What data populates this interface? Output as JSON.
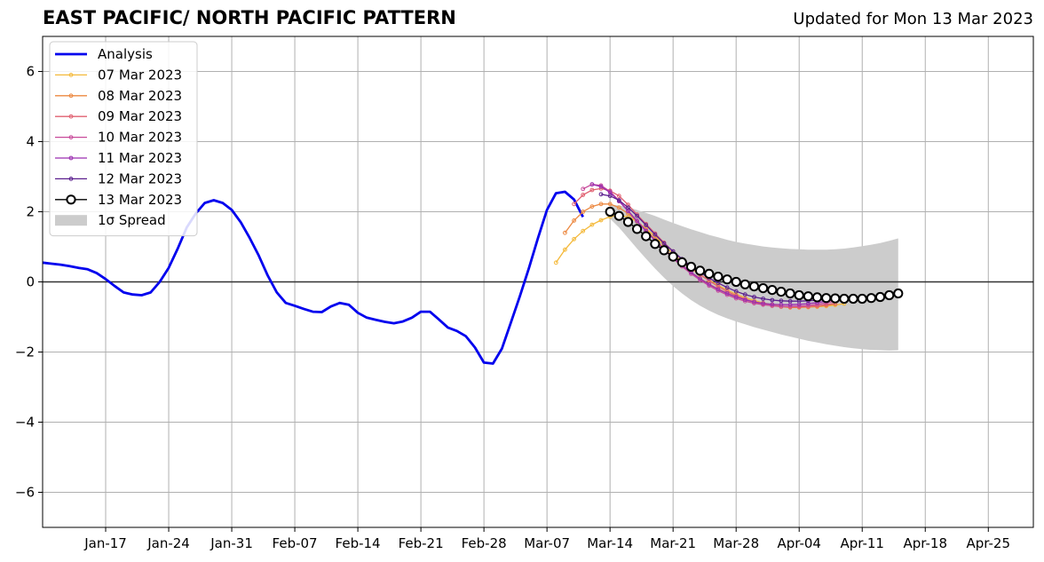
{
  "header": {
    "title": "EAST PACIFIC/ NORTH PACIFIC PATTERN",
    "updated": "Updated for Mon 13 Mar 2023"
  },
  "chart_data": {
    "type": "line",
    "title": "EAST PACIFIC/ NORTH PACIFIC PATTERN",
    "subtitle": "Updated for Mon 13 Mar 2023",
    "xlabel": "",
    "ylabel": "",
    "x_range": [
      "2023-01-10",
      "2023-04-30"
    ],
    "ylim": [
      -7,
      7
    ],
    "x_ticks": [
      {
        "date": "2023-01-17",
        "label": "Jan-17"
      },
      {
        "date": "2023-01-24",
        "label": "Jan-24"
      },
      {
        "date": "2023-01-31",
        "label": "Jan-31"
      },
      {
        "date": "2023-02-07",
        "label": "Feb-07"
      },
      {
        "date": "2023-02-14",
        "label": "Feb-14"
      },
      {
        "date": "2023-02-21",
        "label": "Feb-21"
      },
      {
        "date": "2023-02-28",
        "label": "Feb-28"
      },
      {
        "date": "2023-03-07",
        "label": "Mar-07"
      },
      {
        "date": "2023-03-14",
        "label": "Mar-14"
      },
      {
        "date": "2023-03-21",
        "label": "Mar-21"
      },
      {
        "date": "2023-03-28",
        "label": "Mar-28"
      },
      {
        "date": "2023-04-04",
        "label": "Apr-04"
      },
      {
        "date": "2023-04-11",
        "label": "Apr-11"
      },
      {
        "date": "2023-04-18",
        "label": "Apr-18"
      },
      {
        "date": "2023-04-25",
        "label": "Apr-25"
      }
    ],
    "y_ticks": [
      {
        "value": 6,
        "label": "6"
      },
      {
        "value": 4,
        "label": "4"
      },
      {
        "value": 2,
        "label": "2"
      },
      {
        "value": 0,
        "label": "0"
      },
      {
        "value": -2,
        "label": "−2"
      },
      {
        "value": -4,
        "label": "−4"
      },
      {
        "value": -6,
        "label": "−6"
      }
    ],
    "grid": true,
    "legend_position": "top-left",
    "analysis": {
      "name": "Analysis",
      "color": "#0000ee",
      "start_date": "2023-01-10",
      "values": [
        0.55,
        0.52,
        0.49,
        0.45,
        0.4,
        0.36,
        0.25,
        0.08,
        -0.12,
        -0.3,
        -0.36,
        -0.38,
        -0.3,
        0.0,
        0.4,
        0.95,
        1.55,
        1.95,
        2.25,
        2.33,
        2.25,
        2.05,
        1.7,
        1.25,
        0.75,
        0.18,
        -0.3,
        -0.6,
        -0.68,
        -0.77,
        -0.85,
        -0.86,
        -0.7,
        -0.6,
        -0.65,
        -0.88,
        -1.02,
        -1.08,
        -1.14,
        -1.18,
        -1.13,
        -1.02,
        -0.85,
        -0.85,
        -1.07,
        -1.3,
        -1.4,
        -1.55,
        -1.87,
        -2.3,
        -2.33,
        -1.9,
        -1.15,
        -0.4,
        0.4,
        1.25,
        2.05,
        2.53,
        2.57,
        2.35,
        1.85
      ]
    },
    "forecasts": [
      {
        "name": "07 Mar 2023",
        "color": "#f4b93a",
        "start_date": "2023-03-08",
        "values": [
          0.55,
          0.92,
          1.22,
          1.45,
          1.63,
          1.76,
          1.86,
          1.9,
          1.85,
          1.72,
          1.52,
          1.3,
          1.05,
          0.8,
          0.57,
          0.38,
          0.2,
          0.05,
          -0.1,
          -0.23,
          -0.35,
          -0.45,
          -0.53,
          -0.6,
          -0.65,
          -0.69,
          -0.71,
          -0.72,
          -0.72,
          -0.71,
          -0.69,
          -0.66,
          -0.62
        ]
      },
      {
        "name": "08 Mar 2023",
        "color": "#ec8840",
        "start_date": "2023-03-09",
        "values": [
          1.4,
          1.75,
          2.0,
          2.15,
          2.22,
          2.22,
          2.12,
          1.95,
          1.73,
          1.48,
          1.22,
          0.96,
          0.71,
          0.48,
          0.27,
          0.1,
          -0.06,
          -0.2,
          -0.32,
          -0.42,
          -0.51,
          -0.58,
          -0.64,
          -0.68,
          -0.71,
          -0.73,
          -0.73,
          -0.72,
          -0.7,
          -0.67,
          -0.63
        ]
      },
      {
        "name": "09 Mar 2023",
        "color": "#e06070",
        "start_date": "2023-03-10",
        "values": [
          2.22,
          2.48,
          2.62,
          2.66,
          2.6,
          2.45,
          2.2,
          1.92,
          1.65,
          1.38,
          1.12,
          0.87,
          0.63,
          0.41,
          0.21,
          0.03,
          -0.13,
          -0.27,
          -0.39,
          -0.49,
          -0.57,
          -0.63,
          -0.67,
          -0.7,
          -0.71,
          -0.71,
          -0.7,
          -0.68,
          -0.65,
          -0.61
        ]
      },
      {
        "name": "10 Mar 2023",
        "color": "#c84a9a",
        "start_date": "2023-03-11",
        "values": [
          2.65,
          2.78,
          2.75,
          2.58,
          2.32,
          2.03,
          1.74,
          1.46,
          1.18,
          0.92,
          0.67,
          0.44,
          0.23,
          0.05,
          -0.11,
          -0.25,
          -0.37,
          -0.47,
          -0.55,
          -0.61,
          -0.65,
          -0.68,
          -0.7,
          -0.7,
          -0.69,
          -0.67,
          -0.64,
          -0.6,
          -0.55
        ]
      },
      {
        "name": "11 Mar 2023",
        "color": "#9a2fb0",
        "start_date": "2023-03-12",
        "values": [
          2.78,
          2.72,
          2.55,
          2.3,
          2.02,
          1.73,
          1.45,
          1.18,
          0.93,
          0.69,
          0.47,
          0.27,
          0.09,
          -0.07,
          -0.21,
          -0.33,
          -0.43,
          -0.51,
          -0.57,
          -0.61,
          -0.64,
          -0.65,
          -0.65,
          -0.64,
          -0.62,
          -0.59,
          -0.55,
          -0.5
        ]
      },
      {
        "name": "12 Mar 2023",
        "color": "#5b1f8e",
        "start_date": "2023-03-13",
        "values": [
          2.5,
          2.45,
          2.33,
          2.12,
          1.88,
          1.62,
          1.35,
          1.1,
          0.87,
          0.65,
          0.45,
          0.27,
          0.11,
          -0.03,
          -0.16,
          -0.27,
          -0.36,
          -0.43,
          -0.48,
          -0.52,
          -0.54,
          -0.55,
          -0.55,
          -0.54,
          -0.52,
          -0.5,
          -0.47,
          -0.44
        ]
      }
    ],
    "current_forecast": {
      "name": "13 Mar 2023",
      "color": "#000000",
      "start_date": "2023-03-14",
      "values": [
        2.0,
        1.88,
        1.71,
        1.51,
        1.3,
        1.08,
        0.9,
        0.72,
        0.56,
        0.43,
        0.32,
        0.23,
        0.15,
        0.07,
        0.0,
        -0.07,
        -0.13,
        -0.18,
        -0.23,
        -0.28,
        -0.33,
        -0.38,
        -0.41,
        -0.44,
        -0.46,
        -0.47,
        -0.48,
        -0.48,
        -0.48,
        -0.46,
        -0.43,
        -0.38,
        -0.33
      ]
    },
    "spread": {
      "name": "1σ Spread",
      "color": "#cccccc",
      "start_date": "2023-03-14",
      "upper": [
        2.2,
        2.18,
        2.13,
        2.05,
        1.97,
        1.88,
        1.78,
        1.68,
        1.59,
        1.5,
        1.42,
        1.34,
        1.27,
        1.2,
        1.14,
        1.09,
        1.05,
        1.01,
        0.98,
        0.96,
        0.94,
        0.93,
        0.92,
        0.92,
        0.92,
        0.93,
        0.95,
        0.98,
        1.02,
        1.06,
        1.11,
        1.17,
        1.24
      ],
      "lower": [
        1.8,
        1.55,
        1.25,
        0.95,
        0.66,
        0.38,
        0.12,
        -0.12,
        -0.33,
        -0.52,
        -0.68,
        -0.82,
        -0.94,
        -1.04,
        -1.13,
        -1.21,
        -1.29,
        -1.36,
        -1.43,
        -1.5,
        -1.56,
        -1.62,
        -1.68,
        -1.73,
        -1.78,
        -1.82,
        -1.86,
        -1.89,
        -1.92,
        -1.94,
        -1.95,
        -1.96,
        -1.95
      ]
    },
    "legend": [
      {
        "label": "Analysis",
        "kind": "analysis",
        "color": "#0000ee"
      },
      {
        "label": "07 Mar 2023",
        "kind": "forecast",
        "color": "#f4b93a"
      },
      {
        "label": "08 Mar 2023",
        "kind": "forecast",
        "color": "#ec8840"
      },
      {
        "label": "09 Mar 2023",
        "kind": "forecast",
        "color": "#e06070"
      },
      {
        "label": "10 Mar 2023",
        "kind": "forecast",
        "color": "#c84a9a"
      },
      {
        "label": "11 Mar 2023",
        "kind": "forecast",
        "color": "#9a2fb0"
      },
      {
        "label": "12 Mar 2023",
        "kind": "forecast",
        "color": "#5b1f8e"
      },
      {
        "label": "13 Mar 2023",
        "kind": "current",
        "color": "#000000"
      },
      {
        "label": "1σ Spread",
        "kind": "spread",
        "color": "#cccccc"
      }
    ]
  }
}
